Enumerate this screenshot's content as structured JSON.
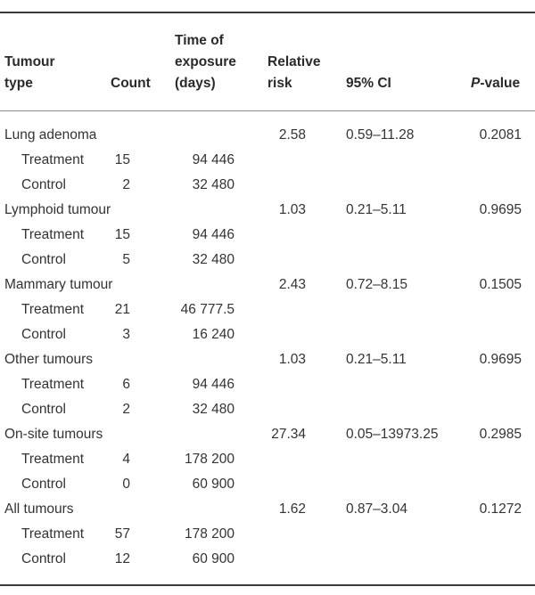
{
  "headers": {
    "tumour_type": [
      "Tumour",
      "type"
    ],
    "count": "Count",
    "time": [
      "Time of",
      "exposure",
      "(days)"
    ],
    "relative_risk": [
      "Relative",
      "risk"
    ],
    "ci": "95% CI",
    "p_value_italic": "P",
    "p_value_rest": "-value"
  },
  "groups": [
    {
      "type": "Lung adenoma",
      "relative_risk": "2.58",
      "ci": "0.59–11.28",
      "p_value": "0.2081",
      "rows": [
        {
          "label": "Treatment",
          "count": "15",
          "time": "94 446"
        },
        {
          "label": "Control",
          "count": "2",
          "time": "32 480"
        }
      ]
    },
    {
      "type": "Lymphoid tumour",
      "relative_risk": "1.03",
      "ci": "0.21–5.11",
      "p_value": "0.9695",
      "rows": [
        {
          "label": "Treatment",
          "count": "15",
          "time": "94 446"
        },
        {
          "label": "Control",
          "count": "5",
          "time": "32 480"
        }
      ]
    },
    {
      "type": "Mammary tumour",
      "relative_risk": "2.43",
      "ci": "0.72–8.15",
      "p_value": "0.1505",
      "rows": [
        {
          "label": "Treatment",
          "count": "21",
          "time": "46 777.5"
        },
        {
          "label": "Control",
          "count": "3",
          "time": "16 240"
        }
      ]
    },
    {
      "type": "Other tumours",
      "relative_risk": "1.03",
      "ci": "0.21–5.11",
      "p_value": "0.9695",
      "rows": [
        {
          "label": "Treatment",
          "count": "6",
          "time": "94 446"
        },
        {
          "label": "Control",
          "count": "2",
          "time": "32 480"
        }
      ]
    },
    {
      "type": "On-site tumours",
      "relative_risk": "27.34",
      "ci": "0.05–13973.25",
      "p_value": "0.2985",
      "rows": [
        {
          "label": "Treatment",
          "count": "4",
          "time": "178 200"
        },
        {
          "label": "Control",
          "count": "0",
          "time": "60 900"
        }
      ]
    },
    {
      "type": "All tumours",
      "relative_risk": "1.62",
      "ci": "0.87–3.04",
      "p_value": "0.1272",
      "rows": [
        {
          "label": "Treatment",
          "count": "57",
          "time": "178 200"
        },
        {
          "label": "Control",
          "count": "12",
          "time": "60 900"
        }
      ]
    }
  ]
}
